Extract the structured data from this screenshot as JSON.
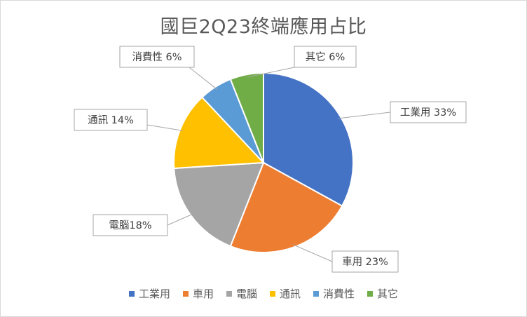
{
  "chart_data": {
    "type": "pie",
    "title": "國巨2Q23終端應用占比",
    "categories": [
      "工業用",
      "車用",
      "電腦",
      "通訊",
      "消費性",
      "其它"
    ],
    "values": [
      33,
      23,
      18,
      14,
      6,
      6
    ],
    "colors": [
      "#4472C4",
      "#ED7D31",
      "#A5A5A5",
      "#FFC000",
      "#5B9BD5",
      "#70AD47"
    ],
    "data_labels": [
      "工業用 33%",
      "車用 23%",
      "電腦18%",
      "通訊 14%",
      "消費性 6%",
      "其它 6%"
    ],
    "legend_position": "bottom",
    "start_angle_deg": 0,
    "direction": "clockwise"
  }
}
